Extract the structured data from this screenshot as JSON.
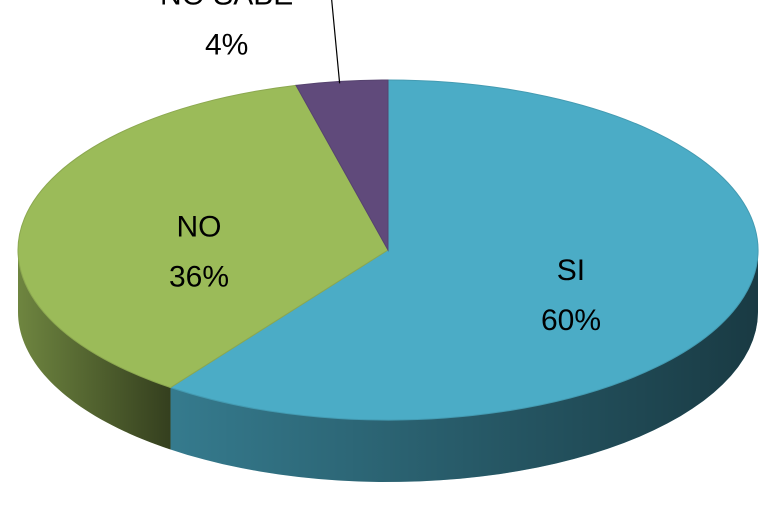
{
  "chart_data": {
    "type": "pie",
    "categories": [
      "SI",
      "NO",
      "NO SABE"
    ],
    "values": [
      60,
      36,
      4
    ],
    "value_labels": [
      "60%",
      "36%",
      "4%"
    ],
    "colors": [
      "#4bacc6",
      "#9bbb59",
      "#604a7b"
    ]
  }
}
